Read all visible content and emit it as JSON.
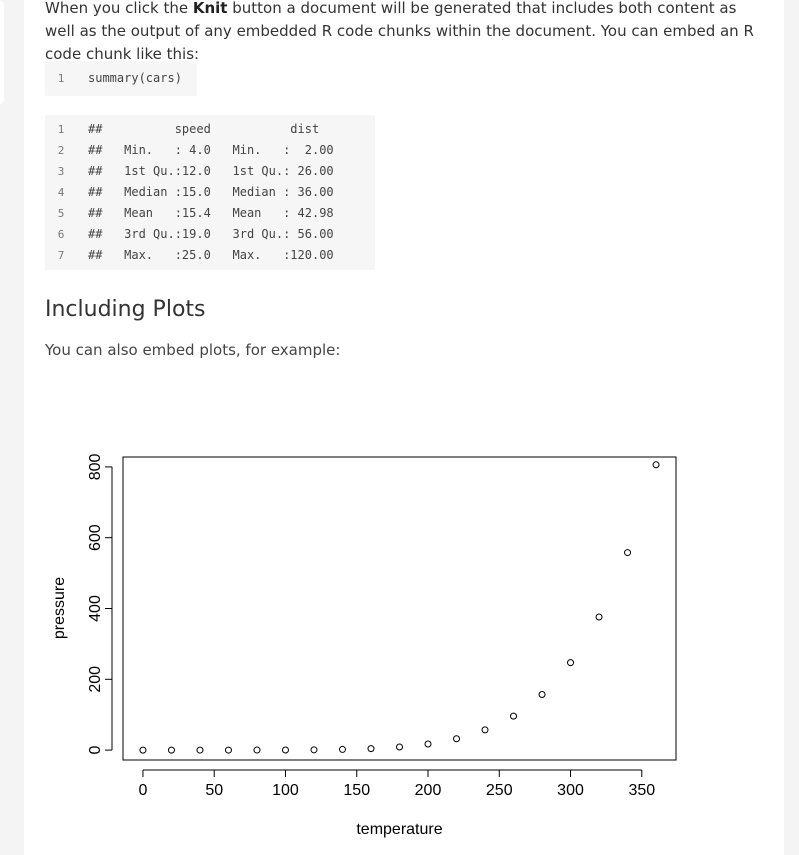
{
  "intro": {
    "before_bold": "When you click the ",
    "bold": "Knit",
    "after_bold": " button a document will be generated that includes both content as well as the output of any embedded R code chunks within the document. You can embed an R code chunk like this:"
  },
  "code_chunk": {
    "lines": [
      {
        "num": "1",
        "text": "summary(cars)"
      }
    ]
  },
  "output_chunk": {
    "lines": [
      {
        "num": "1",
        "text": "##          speed           dist      "
      },
      {
        "num": "2",
        "text": "##   Min.   : 4.0   Min.   :  2.00  "
      },
      {
        "num": "3",
        "text": "##   1st Qu.:12.0   1st Qu.: 26.00  "
      },
      {
        "num": "4",
        "text": "##   Median :15.0   Median : 36.00  "
      },
      {
        "num": "5",
        "text": "##   Mean   :15.4   Mean   : 42.98  "
      },
      {
        "num": "6",
        "text": "##   3rd Qu.:19.0   3rd Qu.: 56.00  "
      },
      {
        "num": "7",
        "text": "##   Max.   :25.0   Max.   :120.00  "
      }
    ]
  },
  "section_heading": "Including Plots",
  "section_text": "You can also embed plots, for example:",
  "chart_data": {
    "type": "scatter",
    "xlabel": "temperature",
    "ylabel": "pressure",
    "xlim": [
      -14,
      374
    ],
    "ylim": [
      -28,
      828
    ],
    "x_ticks": [
      0,
      50,
      100,
      150,
      200,
      250,
      300,
      350
    ],
    "y_ticks": [
      0,
      200,
      400,
      600,
      800
    ],
    "x": [
      0,
      20,
      40,
      60,
      80,
      100,
      120,
      140,
      160,
      180,
      200,
      220,
      240,
      260,
      280,
      300,
      320,
      340,
      360
    ],
    "y": [
      0.0002,
      0.0012,
      0.006,
      0.03,
      0.09,
      0.27,
      0.75,
      1.85,
      4.2,
      8.8,
      17.3,
      32.1,
      57,
      96,
      157,
      247,
      376,
      558,
      806
    ],
    "grid": false,
    "color": "#000000"
  }
}
